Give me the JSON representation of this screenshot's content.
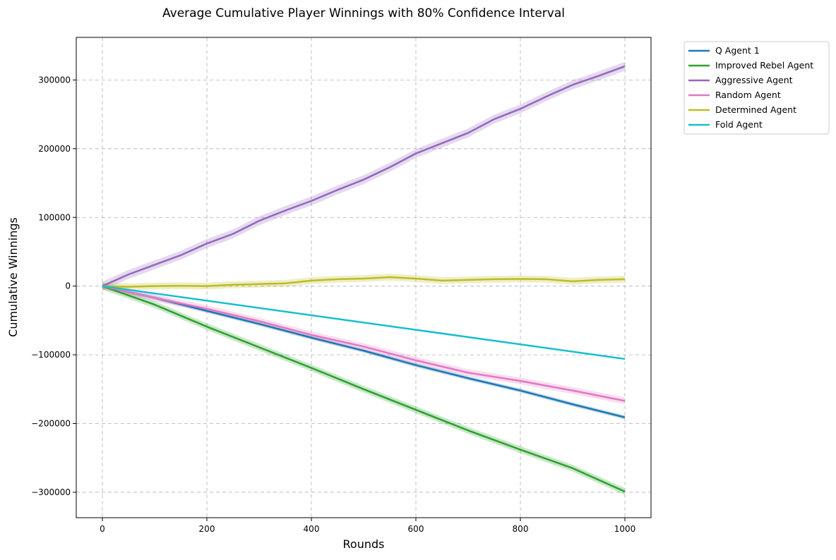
{
  "chart_data": {
    "type": "line",
    "title": "Average Cumulative Player Winnings with 80% Confidence Interval",
    "xlabel": "Rounds",
    "ylabel": "Cumulative Winnings",
    "xlim": [
      -50,
      1050
    ],
    "ylim": [
      -337000,
      362000
    ],
    "x_ticks": [
      0,
      200,
      400,
      600,
      800,
      1000
    ],
    "x_tick_labels": [
      "0",
      "200",
      "400",
      "600",
      "800",
      "1000"
    ],
    "y_ticks": [
      -300000,
      -200000,
      -100000,
      0,
      100000,
      200000,
      300000
    ],
    "y_tick_labels": [
      "−300000",
      "−200000",
      "−100000",
      "0",
      "100000",
      "200000",
      "300000"
    ],
    "grid": true,
    "legend_position": "outside-top-right",
    "confidence_interval": "80%",
    "series": [
      {
        "name": "Q Agent 1",
        "color": "#1f77b4",
        "x": [
          0,
          100,
          200,
          300,
          400,
          500,
          600,
          700,
          800,
          900,
          1000
        ],
        "values": [
          0,
          -17000,
          -36000,
          -55000,
          -75000,
          -94000,
          -115000,
          -134000,
          -152000,
          -172000,
          -191000
        ],
        "ci": 3000
      },
      {
        "name": "Improved Rebel Agent",
        "color": "#2ca02c",
        "x": [
          0,
          100,
          200,
          300,
          400,
          500,
          600,
          700,
          800,
          900,
          1000
        ],
        "values": [
          0,
          -27000,
          -59000,
          -89000,
          -119000,
          -150000,
          -180000,
          -210000,
          -238000,
          -265000,
          -299000
        ],
        "ci": 5000
      },
      {
        "name": "Aggressive Agent",
        "color": "#9467bd",
        "x": [
          0,
          50,
          100,
          150,
          200,
          250,
          300,
          350,
          400,
          450,
          500,
          550,
          600,
          650,
          700,
          750,
          800,
          850,
          900,
          950,
          1000
        ],
        "values": [
          0,
          17000,
          31000,
          45000,
          62000,
          76000,
          95000,
          110000,
          124000,
          140000,
          155000,
          173000,
          193000,
          208000,
          223000,
          243000,
          258000,
          276000,
          293000,
          306000,
          320000
        ],
        "ci": 6500
      },
      {
        "name": "Random Agent",
        "color": "#e377c2",
        "x": [
          0,
          100,
          200,
          300,
          400,
          500,
          600,
          700,
          800,
          900,
          1000
        ],
        "values": [
          0,
          -17000,
          -33000,
          -51000,
          -71000,
          -88000,
          -108000,
          -126000,
          -138000,
          -152000,
          -167000
        ],
        "ci": 5000
      },
      {
        "name": "Determined Agent",
        "color": "#bcbd22",
        "x": [
          0,
          50,
          100,
          150,
          200,
          250,
          300,
          350,
          400,
          450,
          500,
          550,
          600,
          650,
          700,
          750,
          800,
          850,
          900,
          950,
          1000
        ],
        "values": [
          0,
          -1000,
          0,
          500,
          0,
          2000,
          3000,
          4000,
          8000,
          10000,
          11000,
          13000,
          11000,
          8000,
          9000,
          10000,
          10500,
          10000,
          7000,
          9000,
          10000
        ],
        "ci": 5000
      },
      {
        "name": "Fold Agent",
        "color": "#17becf",
        "x": [
          0,
          1000
        ],
        "values": [
          0,
          -106000
        ],
        "ci": 0
      }
    ]
  }
}
